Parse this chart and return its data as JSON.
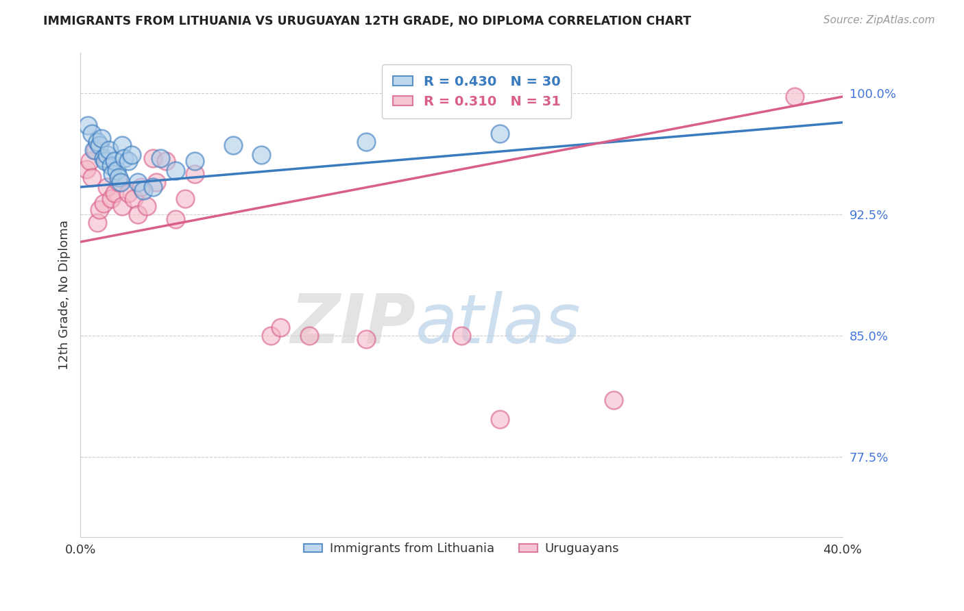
{
  "title": "IMMIGRANTS FROM LITHUANIA VS URUGUAYAN 12TH GRADE, NO DIPLOMA CORRELATION CHART",
  "source": "Source: ZipAtlas.com",
  "ylabel": "12th Grade, No Diploma",
  "xlim": [
    0.0,
    0.4
  ],
  "ylim": [
    0.725,
    1.025
  ],
  "yticks": [
    0.775,
    0.85,
    0.925,
    1.0
  ],
  "ytick_labels": [
    "77.5%",
    "85.0%",
    "92.5%",
    "100.0%"
  ],
  "xticks": [
    0.0,
    0.05,
    0.1,
    0.15,
    0.2,
    0.25,
    0.3,
    0.35,
    0.4
  ],
  "xtick_labels": [
    "0.0%",
    "",
    "",
    "",
    "",
    "",
    "",
    "",
    "40.0%"
  ],
  "legend_blue_r": "0.430",
  "legend_blue_n": "30",
  "legend_pink_r": "0.310",
  "legend_pink_n": "31",
  "blue_color": "#aecde8",
  "pink_color": "#f4b8c8",
  "blue_line_color": "#3a7bbf",
  "pink_line_color": "#d95f8a",
  "blue_scatter_x": [
    0.004,
    0.006,
    0.007,
    0.009,
    0.01,
    0.011,
    0.012,
    0.013,
    0.014,
    0.015,
    0.016,
    0.017,
    0.018,
    0.019,
    0.02,
    0.021,
    0.022,
    0.023,
    0.025,
    0.027,
    0.03,
    0.033,
    0.038,
    0.042,
    0.05,
    0.06,
    0.08,
    0.095,
    0.15,
    0.22
  ],
  "blue_scatter_y": [
    0.98,
    0.975,
    0.965,
    0.97,
    0.968,
    0.972,
    0.96,
    0.958,
    0.962,
    0.965,
    0.955,
    0.95,
    0.958,
    0.952,
    0.948,
    0.945,
    0.968,
    0.96,
    0.958,
    0.962,
    0.945,
    0.94,
    0.942,
    0.96,
    0.952,
    0.958,
    0.968,
    0.962,
    0.97,
    0.975
  ],
  "pink_scatter_x": [
    0.003,
    0.005,
    0.006,
    0.008,
    0.009,
    0.01,
    0.012,
    0.014,
    0.016,
    0.018,
    0.02,
    0.022,
    0.025,
    0.028,
    0.03,
    0.032,
    0.035,
    0.038,
    0.04,
    0.045,
    0.05,
    0.055,
    0.06,
    0.1,
    0.105,
    0.12,
    0.15,
    0.2,
    0.22,
    0.28,
    0.375
  ],
  "pink_scatter_y": [
    0.953,
    0.958,
    0.948,
    0.965,
    0.92,
    0.928,
    0.932,
    0.942,
    0.935,
    0.938,
    0.945,
    0.93,
    0.938,
    0.935,
    0.925,
    0.942,
    0.93,
    0.96,
    0.945,
    0.958,
    0.922,
    0.935,
    0.95,
    0.85,
    0.855,
    0.85,
    0.848,
    0.85,
    0.798,
    0.81,
    0.998
  ],
  "blue_trendline_x": [
    0.0,
    0.4
  ],
  "blue_trendline_y": [
    0.942,
    0.982
  ],
  "pink_trendline_x": [
    0.0,
    0.4
  ],
  "pink_trendline_y": [
    0.908,
    0.998
  ],
  "watermark_zip": "ZIP",
  "watermark_atlas": "atlas",
  "background_color": "#ffffff",
  "grid_color": "#c8c8c8"
}
